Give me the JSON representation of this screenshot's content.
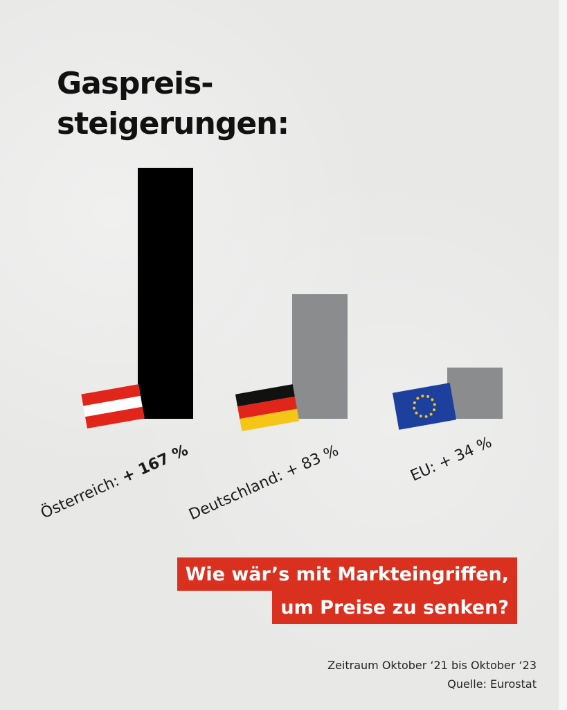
{
  "title": {
    "line1": "Gaspreis-",
    "line2": "steigerungen:"
  },
  "chart_data": {
    "type": "bar",
    "categories": [
      "Österreich",
      "Deutschland",
      "EU"
    ],
    "values": [
      167,
      83,
      34
    ],
    "labels": [
      {
        "name": "Österreich: ",
        "value": "+ 167 %"
      },
      {
        "name": "Deutschland: ",
        "value": "+ 83 %"
      },
      {
        "name": "EU: ",
        "value": "+ 34 %"
      }
    ],
    "bar_colors": [
      "#000000",
      "#8b8c8e",
      "#8b8c8e"
    ],
    "flags": [
      "austria-flag",
      "germany-flag",
      "eu-flag"
    ],
    "ylim": [
      0,
      167
    ],
    "grid": false,
    "xlabel": "",
    "ylabel": ""
  },
  "callout": {
    "line1": "Wie wär’s mit Markteingriffen,",
    "line2": "um Preise zu senken?"
  },
  "footer": {
    "period": "Zeitraum Oktober ‘21 bis Oktober ‘23",
    "source": "Quelle: Eurostat"
  },
  "colors": {
    "accent": "#d9301f",
    "bar_highlight": "#000000",
    "bar_other": "#8b8c8e",
    "background": "#e8e8e7"
  }
}
